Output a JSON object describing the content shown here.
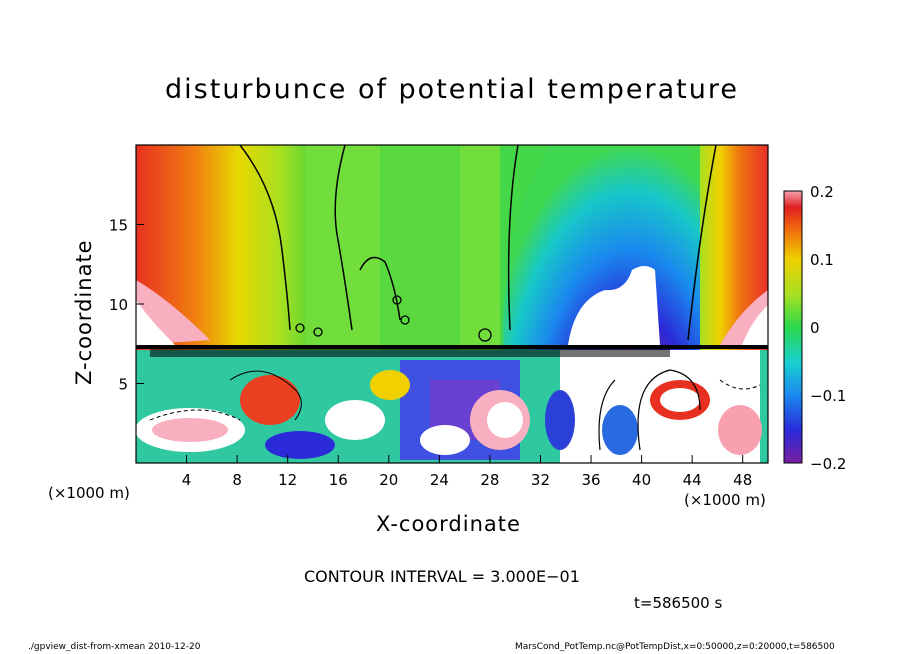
{
  "chart_data": {
    "type": "heatmap",
    "title": "disturbunce of potential temperature",
    "xlabel": "X-coordinate",
    "ylabel": "Z-coordinate",
    "x_unit_left": "(×1000 m)",
    "x_unit_right": "(×1000 m)",
    "xlim": [
      0,
      50
    ],
    "ylim": [
      0,
      20
    ],
    "xticks": [
      4,
      8,
      12,
      16,
      20,
      24,
      28,
      32,
      36,
      40,
      44,
      48
    ],
    "xtick_labels": [
      "4",
      "8",
      "12",
      "16",
      "20",
      "24",
      "28",
      "32",
      "36",
      "40",
      "44",
      "48"
    ],
    "yticks": [
      5,
      10,
      15
    ],
    "ytick_labels": [
      "5",
      "10",
      "15"
    ],
    "colorbar": {
      "min": -0.2,
      "max": 0.2,
      "tick_labels": [
        "0.2",
        "0.1",
        "0",
        "−0.1",
        "−0.2"
      ],
      "tick_values": [
        0.2,
        0.1,
        0,
        -0.1,
        -0.2
      ]
    },
    "contour_interval_text": "CONTOUR INTERVAL = 3.000E−01",
    "time_text": "t=586500 s",
    "boundary_layer_top_z": 7.5,
    "regions": [
      {
        "name": "left-warm-anomaly",
        "x": [
          0,
          7
        ],
        "z": [
          7.5,
          20
        ],
        "value": 0.18
      },
      {
        "name": "center-neutral",
        "x": [
          8,
          30
        ],
        "z": [
          7.5,
          20
        ],
        "value": 0.02
      },
      {
        "name": "right-cold-anomaly",
        "x": [
          30,
          44
        ],
        "z": [
          7.5,
          20
        ],
        "value": -0.18
      },
      {
        "name": "right-warm-anomaly",
        "x": [
          44,
          50
        ],
        "z": [
          7.5,
          20
        ],
        "value": 0.18
      }
    ]
  },
  "footer": {
    "left": "./gpview_dist-from-xmean  2010-12-20",
    "right": "MarsCond_PotTemp.nc@PotTempDist,x=0:50000,z=0:20000,t=586500"
  }
}
